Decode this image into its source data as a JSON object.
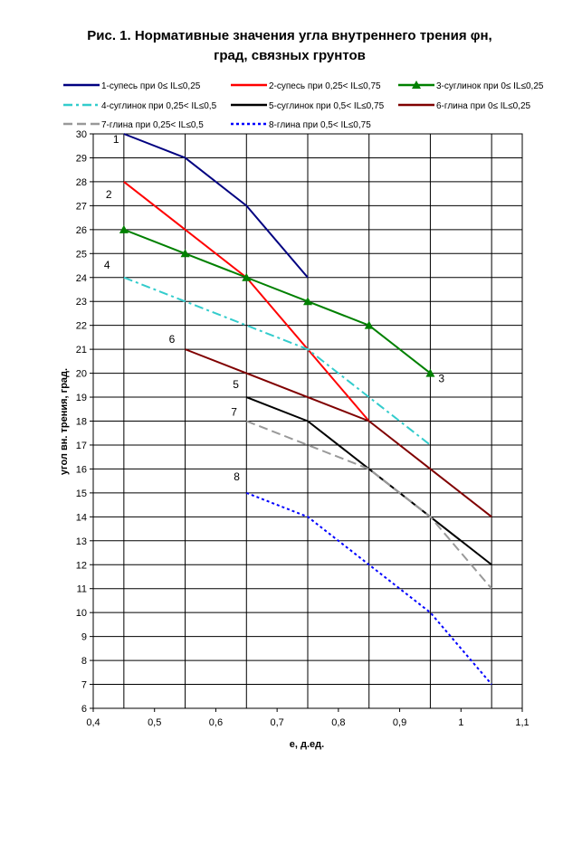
{
  "chart_data": {
    "type": "line",
    "title_lines": [
      "Рис. 1. Нормативные значения угла внутреннего трения φн,",
      "град, связных грунтов"
    ],
    "xlabel": "е, д.ед.",
    "ylabel": "угол вн. трения, град.",
    "xlim": [
      0.4,
      1.1
    ],
    "ylim": [
      6,
      30
    ],
    "x_ticks": [
      0.4,
      0.5,
      0.6,
      0.7,
      0.8,
      0.9,
      1,
      1.1
    ],
    "x_tick_labels": [
      "0,4",
      "0,5",
      "0,6",
      "0,7",
      "0,8",
      "0,9",
      "1",
      "1,1"
    ],
    "y_ticks": [
      6,
      7,
      8,
      9,
      10,
      11,
      12,
      13,
      14,
      15,
      16,
      17,
      18,
      19,
      20,
      21,
      22,
      23,
      24,
      25,
      26,
      27,
      28,
      29,
      30
    ],
    "y_tick_labels": [
      "6",
      "7",
      "8",
      "9",
      "10",
      "11",
      "12",
      "13",
      "14",
      "15",
      "16",
      "17",
      "18",
      "19",
      "20",
      "21",
      "22",
      "23",
      "24",
      "25",
      "26",
      "27",
      "28",
      "29",
      "30"
    ],
    "grid": true,
    "grid_x_lines": [
      0.45,
      0.55,
      0.65,
      0.75,
      0.85,
      0.95,
      1.05
    ],
    "legend_position": "top",
    "series": [
      {
        "name": "1-супесь при 0≤ IL≤0,25",
        "label": "1",
        "color": "#000080",
        "dash": "solid",
        "marker": "none",
        "x": [
          0.45,
          0.55,
          0.65,
          0.75
        ],
        "y": [
          30,
          29,
          27,
          24
        ]
      },
      {
        "name": "2-супесь при 0,25< IL≤0,75",
        "label": "2",
        "color": "#ff0000",
        "dash": "solid",
        "marker": "none",
        "x": [
          0.45,
          0.55,
          0.65,
          0.75,
          0.85
        ],
        "y": [
          28,
          26,
          24,
          21,
          18
        ]
      },
      {
        "name": "3-суглинок при 0≤ IL≤0,25",
        "label": "3",
        "color": "#008000",
        "dash": "solid",
        "marker": "triangle",
        "x": [
          0.45,
          0.55,
          0.65,
          0.75,
          0.85,
          0.95
        ],
        "y": [
          26,
          25,
          24,
          23,
          22,
          20
        ]
      },
      {
        "name": "4-суглинок при 0,25< IL≤0,5",
        "label": "4",
        "color": "#33cccc",
        "dash": "dashdot",
        "marker": "none",
        "x": [
          0.45,
          0.55,
          0.65,
          0.75,
          0.85,
          0.95
        ],
        "y": [
          24,
          23,
          22,
          21,
          19,
          17
        ]
      },
      {
        "name": "5-суглинок при 0,5< IL≤0,75",
        "label": "5",
        "color": "#000000",
        "dash": "solid",
        "marker": "none",
        "x": [
          0.65,
          0.75,
          0.85,
          0.95,
          1.05
        ],
        "y": [
          19,
          18,
          16,
          14,
          12
        ]
      },
      {
        "name": "6-глина при 0≤ IL≤0,25",
        "label": "6",
        "color": "#800000",
        "dash": "solid",
        "marker": "none",
        "x": [
          0.55,
          0.65,
          0.75,
          0.85,
          0.95,
          1.05
        ],
        "y": [
          21,
          20,
          19,
          18,
          16,
          14
        ]
      },
      {
        "name": "7-глина при 0,25< IL≤0,5",
        "label": "7",
        "color": "#999999",
        "dash": "dash",
        "marker": "none",
        "x": [
          0.65,
          0.75,
          0.85,
          0.95,
          1.05
        ],
        "y": [
          18,
          17,
          16,
          14,
          11
        ]
      },
      {
        "name": "8-глина при 0,5< IL≤0,75",
        "label": "8",
        "color": "#0000ff",
        "dash": "dot",
        "marker": "none",
        "x": [
          0.65,
          0.75,
          0.85,
          0.95,
          1.05
        ],
        "y": [
          15,
          14,
          12,
          10,
          7
        ]
      }
    ]
  }
}
